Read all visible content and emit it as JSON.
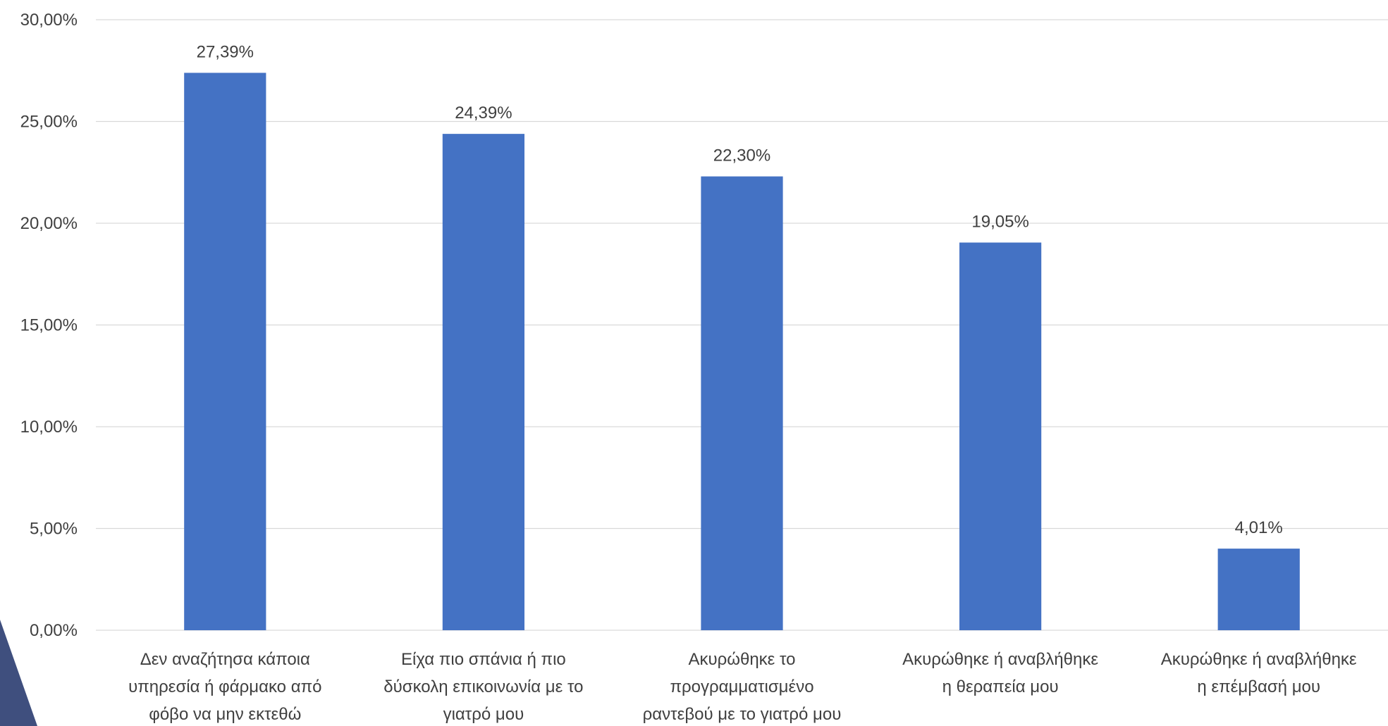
{
  "chart_data": {
    "type": "bar",
    "categories": [
      [
        "Δεν αναζήτησα κάποια",
        "υπηρεσία ή φάρμακο από",
        "φόβο να μην εκτεθώ"
      ],
      [
        "Είχα πιο σπάνια ή πιο",
        "δύσκολη επικοινωνία με το",
        "γιατρό μου"
      ],
      [
        "Ακυρώθηκε το",
        "προγραμματισμένο",
        "ραντεβού με το γιατρό μου"
      ],
      [
        "Ακυρώθηκε ή αναβλήθηκε",
        "η θεραπεία μου"
      ],
      [
        "Ακυρώθηκε ή αναβλήθηκε",
        "η επέμβασή μου"
      ]
    ],
    "values": [
      27.39,
      24.39,
      22.3,
      19.05,
      4.01
    ],
    "data_labels": [
      "27,39%",
      "24,39%",
      "22,30%",
      "19,05%",
      "4,01%"
    ],
    "ylim": [
      0,
      30
    ],
    "y_ticks": [
      0,
      5,
      10,
      15,
      20,
      25,
      30
    ],
    "y_tick_labels": [
      "0,00%",
      "5,00%",
      "10,00%",
      "15,00%",
      "20,00%",
      "25,00%",
      "30,00%"
    ],
    "grid": true,
    "legend": "none",
    "colors": {
      "bar": "#4472C4",
      "grid": "#D9D9D9",
      "text": "#404040",
      "decor": "#3F4F7E"
    }
  }
}
